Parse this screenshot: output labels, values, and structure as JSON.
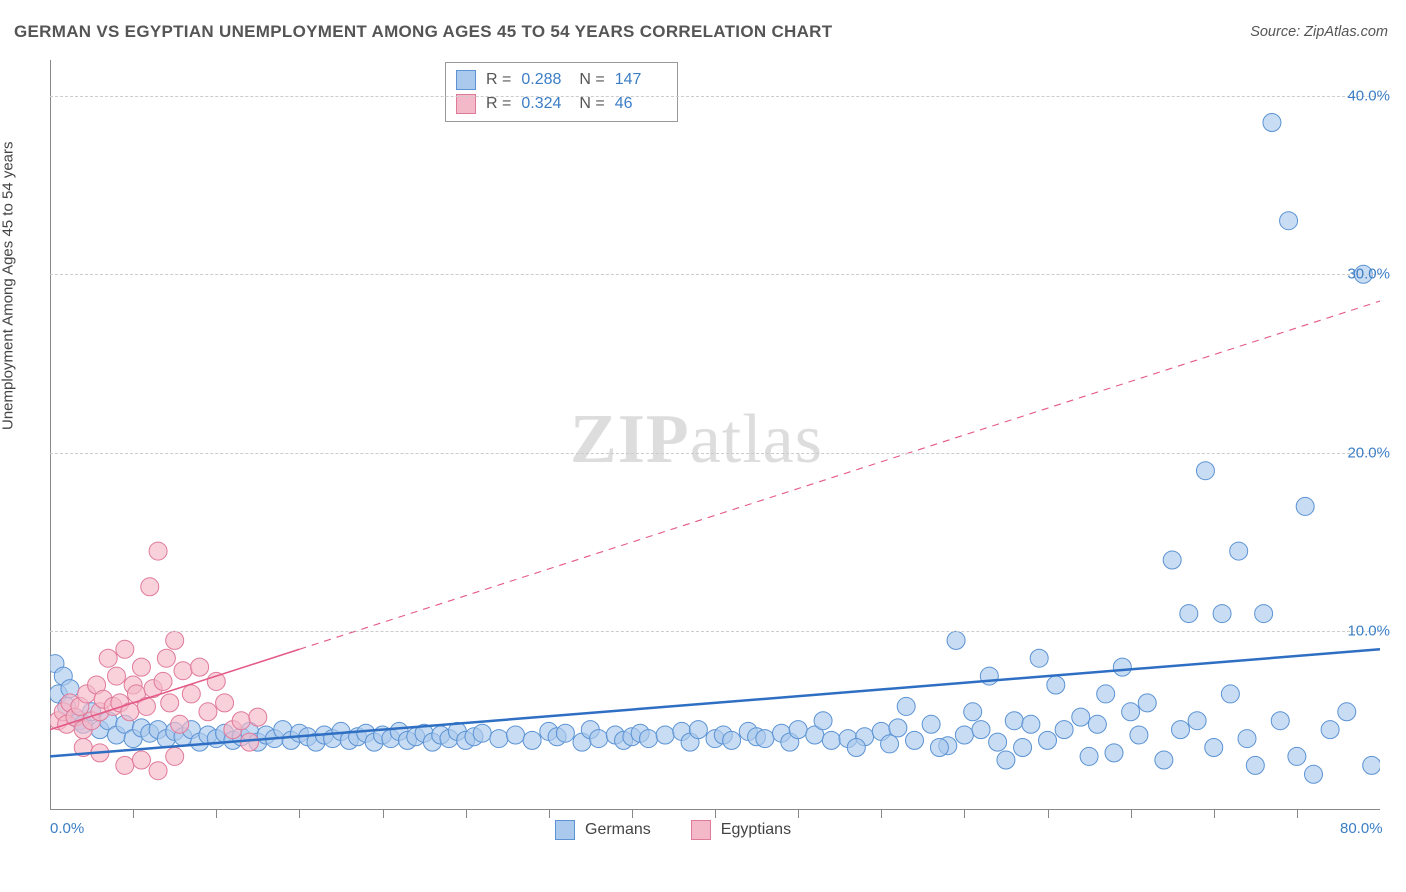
{
  "title": "GERMAN VS EGYPTIAN UNEMPLOYMENT AMONG AGES 45 TO 54 YEARS CORRELATION CHART",
  "source": "Source: ZipAtlas.com",
  "ylabel": "Unemployment Among Ages 45 to 54 years",
  "watermark_zip": "ZIP",
  "watermark_atlas": "atlas",
  "chart": {
    "type": "scatter",
    "xlim": [
      0,
      80
    ],
    "ylim": [
      0,
      42
    ],
    "x_ticks_minor_step": 5,
    "x_tick_labels": [
      {
        "x": 0,
        "label": "0.0%"
      },
      {
        "x": 80,
        "label": "80.0%"
      }
    ],
    "y_ticks": [
      {
        "y": 10,
        "label": "10.0%"
      },
      {
        "y": 20,
        "label": "20.0%"
      },
      {
        "y": 30,
        "label": "30.0%"
      },
      {
        "y": 40,
        "label": "40.0%"
      }
    ],
    "background_color": "#ffffff",
    "grid_color": "#cccccc",
    "axis_color": "#888888",
    "series": [
      {
        "name": "Germans",
        "color_fill": "#aac9ec",
        "color_stroke": "#5b93d4",
        "marker_radius": 9,
        "fill_opacity": 0.65,
        "trend": {
          "x1": 0,
          "y1": 3.0,
          "x2": 80,
          "y2": 9.0,
          "x_data_end": 80,
          "color": "#2e6fc3",
          "width": 2.5
        },
        "stats": {
          "R": "0.288",
          "N": "147"
        },
        "points": [
          [
            0.3,
            8.2
          ],
          [
            0.5,
            6.5
          ],
          [
            0.8,
            7.5
          ],
          [
            1.0,
            5.8
          ],
          [
            1.2,
            6.8
          ],
          [
            1.5,
            5.2
          ],
          [
            1.8,
            5.0
          ],
          [
            2.0,
            4.8
          ],
          [
            2.5,
            5.5
          ],
          [
            3.0,
            4.5
          ],
          [
            3.5,
            5.0
          ],
          [
            4.0,
            4.2
          ],
          [
            4.5,
            4.8
          ],
          [
            5.0,
            4.0
          ],
          [
            5.5,
            4.6
          ],
          [
            6.0,
            4.3
          ],
          [
            6.5,
            4.5
          ],
          [
            7.0,
            4.0
          ],
          [
            7.5,
            4.4
          ],
          [
            8.0,
            4.1
          ],
          [
            8.5,
            4.5
          ],
          [
            9.0,
            3.8
          ],
          [
            9.5,
            4.2
          ],
          [
            10,
            4.0
          ],
          [
            10.5,
            4.3
          ],
          [
            11,
            3.9
          ],
          [
            11.5,
            4.1
          ],
          [
            12,
            4.4
          ],
          [
            12.5,
            3.8
          ],
          [
            13,
            4.2
          ],
          [
            13.5,
            4.0
          ],
          [
            14,
            4.5
          ],
          [
            14.5,
            3.9
          ],
          [
            15,
            4.3
          ],
          [
            15.5,
            4.1
          ],
          [
            16,
            3.8
          ],
          [
            16.5,
            4.2
          ],
          [
            17,
            4.0
          ],
          [
            17.5,
            4.4
          ],
          [
            18,
            3.9
          ],
          [
            18.5,
            4.1
          ],
          [
            19,
            4.3
          ],
          [
            19.5,
            3.8
          ],
          [
            20,
            4.2
          ],
          [
            20.5,
            4.0
          ],
          [
            21,
            4.4
          ],
          [
            21.5,
            3.9
          ],
          [
            22,
            4.1
          ],
          [
            22.5,
            4.3
          ],
          [
            23,
            3.8
          ],
          [
            23.5,
            4.2
          ],
          [
            24,
            4.0
          ],
          [
            24.5,
            4.4
          ],
          [
            25,
            3.9
          ],
          [
            25.5,
            4.1
          ],
          [
            26,
            4.3
          ],
          [
            27,
            4.0
          ],
          [
            28,
            4.2
          ],
          [
            29,
            3.9
          ],
          [
            30,
            4.4
          ],
          [
            30.5,
            4.1
          ],
          [
            31,
            4.3
          ],
          [
            32,
            3.8
          ],
          [
            32.5,
            4.5
          ],
          [
            33,
            4.0
          ],
          [
            34,
            4.2
          ],
          [
            34.5,
            3.9
          ],
          [
            35,
            4.1
          ],
          [
            35.5,
            4.3
          ],
          [
            36,
            4.0
          ],
          [
            37,
            4.2
          ],
          [
            38,
            4.4
          ],
          [
            38.5,
            3.8
          ],
          [
            39,
            4.5
          ],
          [
            40,
            4.0
          ],
          [
            40.5,
            4.2
          ],
          [
            41,
            3.9
          ],
          [
            42,
            4.4
          ],
          [
            42.5,
            4.1
          ],
          [
            43,
            4.0
          ],
          [
            44,
            4.3
          ],
          [
            44.5,
            3.8
          ],
          [
            45,
            4.5
          ],
          [
            46,
            4.2
          ],
          [
            47,
            3.9
          ],
          [
            48,
            4.0
          ],
          [
            49,
            4.1
          ],
          [
            50,
            4.4
          ],
          [
            50.5,
            3.7
          ],
          [
            51,
            4.6
          ],
          [
            52,
            3.9
          ],
          [
            53,
            4.8
          ],
          [
            54,
            3.6
          ],
          [
            55,
            4.2
          ],
          [
            56,
            4.5
          ],
          [
            57,
            3.8
          ],
          [
            58,
            5.0
          ],
          [
            58.5,
            3.5
          ],
          [
            59,
            4.8
          ],
          [
            60,
            3.9
          ],
          [
            61,
            4.5
          ],
          [
            62,
            5.2
          ],
          [
            62.5,
            3.0
          ],
          [
            63,
            4.8
          ],
          [
            64,
            3.2
          ],
          [
            65,
            5.5
          ],
          [
            65.5,
            4.2
          ],
          [
            66,
            6.0
          ],
          [
            67,
            2.8
          ],
          [
            67.5,
            14.0
          ],
          [
            68,
            4.5
          ],
          [
            68.5,
            11.0
          ],
          [
            69,
            5.0
          ],
          [
            69.5,
            19.0
          ],
          [
            70,
            3.5
          ],
          [
            70.5,
            11.0
          ],
          [
            71,
            6.5
          ],
          [
            71.5,
            14.5
          ],
          [
            72,
            4.0
          ],
          [
            72.5,
            2.5
          ],
          [
            73,
            11.0
          ],
          [
            73.5,
            38.5
          ],
          [
            74,
            5.0
          ],
          [
            74.5,
            33.0
          ],
          [
            75,
            3.0
          ],
          [
            75.5,
            17.0
          ],
          [
            76,
            2.0
          ],
          [
            77,
            4.5
          ],
          [
            78,
            5.5
          ],
          [
            79,
            30.0
          ],
          [
            79.5,
            2.5
          ],
          [
            54.5,
            9.5
          ],
          [
            56.5,
            7.5
          ],
          [
            59.5,
            8.5
          ],
          [
            60.5,
            7.0
          ],
          [
            63.5,
            6.5
          ],
          [
            64.5,
            8.0
          ],
          [
            53.5,
            3.5
          ],
          [
            55.5,
            5.5
          ],
          [
            46.5,
            5.0
          ],
          [
            48.5,
            3.5
          ],
          [
            51.5,
            5.8
          ],
          [
            57.5,
            2.8
          ]
        ]
      },
      {
        "name": "Egyptians",
        "color_fill": "#f4b9c8",
        "color_stroke": "#e07a9a",
        "marker_radius": 9,
        "fill_opacity": 0.65,
        "trend": {
          "x1": 0,
          "y1": 4.5,
          "x2": 80,
          "y2": 28.5,
          "x_data_end": 15,
          "color": "#e45a87",
          "width": 1.6
        },
        "stats": {
          "R": "0.324",
          "N": "46"
        },
        "points": [
          [
            0.5,
            5.0
          ],
          [
            0.8,
            5.5
          ],
          [
            1.0,
            4.8
          ],
          [
            1.2,
            6.0
          ],
          [
            1.5,
            5.2
          ],
          [
            1.8,
            5.8
          ],
          [
            2.0,
            4.5
          ],
          [
            2.2,
            6.5
          ],
          [
            2.5,
            5.0
          ],
          [
            2.8,
            7.0
          ],
          [
            3.0,
            5.5
          ],
          [
            3.2,
            6.2
          ],
          [
            3.5,
            8.5
          ],
          [
            3.8,
            5.8
          ],
          [
            4.0,
            7.5
          ],
          [
            4.2,
            6.0
          ],
          [
            4.5,
            9.0
          ],
          [
            4.8,
            5.5
          ],
          [
            5.0,
            7.0
          ],
          [
            5.2,
            6.5
          ],
          [
            5.5,
            8.0
          ],
          [
            5.8,
            5.8
          ],
          [
            6.0,
            12.5
          ],
          [
            6.2,
            6.8
          ],
          [
            6.5,
            14.5
          ],
          [
            6.8,
            7.2
          ],
          [
            7.0,
            8.5
          ],
          [
            7.2,
            6.0
          ],
          [
            7.5,
            9.5
          ],
          [
            7.8,
            4.8
          ],
          [
            8.0,
            7.8
          ],
          [
            8.5,
            6.5
          ],
          [
            9.0,
            8.0
          ],
          [
            9.5,
            5.5
          ],
          [
            10,
            7.2
          ],
          [
            10.5,
            6.0
          ],
          [
            11,
            4.5
          ],
          [
            11.5,
            5.0
          ],
          [
            12,
            3.8
          ],
          [
            12.5,
            5.2
          ],
          [
            4.5,
            2.5
          ],
          [
            5.5,
            2.8
          ],
          [
            6.5,
            2.2
          ],
          [
            7.5,
            3.0
          ],
          [
            2.0,
            3.5
          ],
          [
            3.0,
            3.2
          ]
        ]
      }
    ]
  },
  "bottom_legend": [
    {
      "label": "Germans",
      "fill": "#aac9ec",
      "stroke": "#5b93d4"
    },
    {
      "label": "Egyptians",
      "fill": "#f4b9c8",
      "stroke": "#e07a9a"
    }
  ],
  "colors": {
    "tick_text": "#3b7ec5",
    "body_text": "#555555"
  }
}
